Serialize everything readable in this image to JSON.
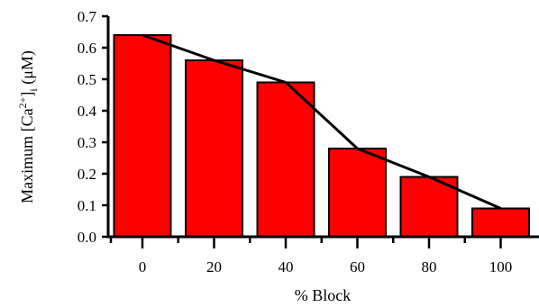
{
  "chart_data": {
    "type": "bar",
    "categories": [
      "0",
      "20",
      "40",
      "60",
      "80",
      "100"
    ],
    "values": [
      0.64,
      0.56,
      0.49,
      0.28,
      0.19,
      0.09
    ],
    "line_overlay": [
      0.64,
      0.56,
      0.49,
      0.28,
      0.19,
      0.09
    ],
    "xlabel": "% Block",
    "ylabel": "Maximum [Ca2+]i (μM)",
    "ylabel_parts": {
      "pre": "Maximum [Ca",
      "sup": "2+",
      "mid": "]",
      "sub": "i",
      "post": " (μM)"
    },
    "yticks": [
      "0.0",
      "0.1",
      "0.2",
      "0.3",
      "0.4",
      "0.5",
      "0.6",
      "0.7"
    ],
    "ylim": [
      0,
      0.7
    ],
    "grid": false,
    "colors": {
      "bar": "#ff0000",
      "edge": "#000000"
    }
  }
}
